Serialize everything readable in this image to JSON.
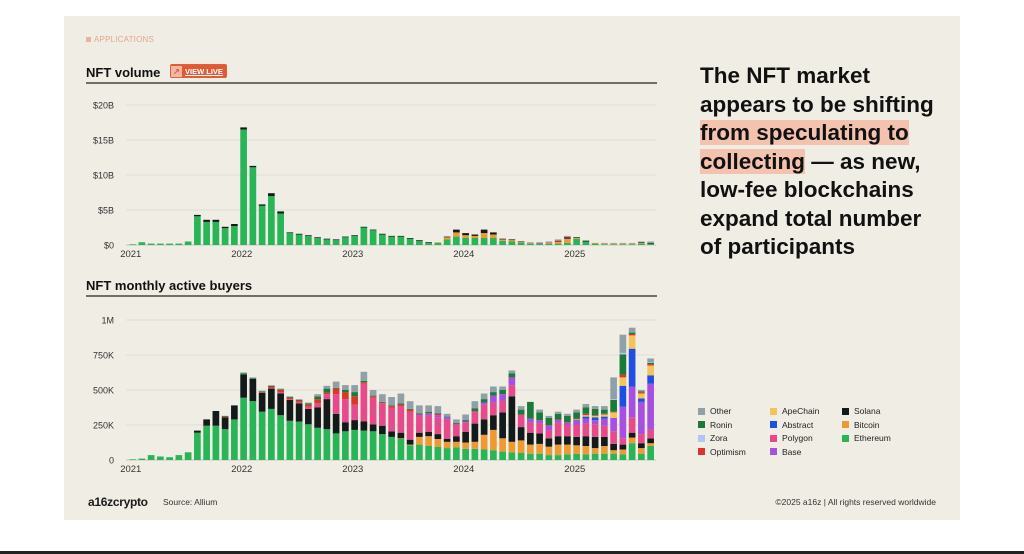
{
  "eyebrow": "APPLICATIONS",
  "volume_title": "NFT volume",
  "view_live_label": "VIEW LIVE",
  "buyers_title": "NFT monthly active buyers",
  "headline": {
    "before": "The NFT market appears to be shifting ",
    "highlight": "from speculating to collecting",
    "after": " — as new, low-fee blockchains expand total number of participants"
  },
  "footer": {
    "logo": "a16zcrypto",
    "source": "Source: Allium",
    "copyright": "©2025 a16z | All rights reserved worldwide"
  },
  "colors": {
    "Other": "#8fa0a8",
    "Ronin": "#1a7a3a",
    "Zora": "#aec8ef",
    "Optimism": "#d9362c",
    "ApeChain": "#f2c55a",
    "Abstract": "#1f4fe0",
    "Polygon": "#e64a8a",
    "Base": "#a550e0",
    "Solana": "#121a1a",
    "Bitcoin": "#ee9a34",
    "Ethereum": "#28b457"
  },
  "legend": [
    "Other",
    "ApeChain",
    "Solana",
    "Ronin",
    "Abstract",
    "Bitcoin",
    "Zora",
    "Polygon",
    "Ethereum",
    "Optimism",
    "Base"
  ],
  "chart_data": [
    {
      "type": "bar",
      "stacked": true,
      "title": "NFT volume",
      "xlabel": "",
      "ylabel": "",
      "x_ticks": [
        "2021",
        "2022",
        "2023",
        "2024",
        "2025"
      ],
      "y_ticks": [
        "$0",
        "$5B",
        "$10B",
        "$15B",
        "$20B"
      ],
      "ylim": [
        0,
        20
      ],
      "units": "USD billions",
      "grid": true,
      "categories": [
        "2021-01",
        "2021-02",
        "2021-03",
        "2021-04",
        "2021-05",
        "2021-06",
        "2021-07",
        "2021-08",
        "2021-09",
        "2021-10",
        "2021-11",
        "2021-12",
        "2022-01",
        "2022-02",
        "2022-03",
        "2022-04",
        "2022-05",
        "2022-06",
        "2022-07",
        "2022-08",
        "2022-09",
        "2022-10",
        "2022-11",
        "2022-12",
        "2023-01",
        "2023-02",
        "2023-03",
        "2023-04",
        "2023-05",
        "2023-06",
        "2023-07",
        "2023-08",
        "2023-09",
        "2023-10",
        "2023-11",
        "2023-12",
        "2024-01",
        "2024-02",
        "2024-03",
        "2024-04",
        "2024-05",
        "2024-06",
        "2024-07",
        "2024-08",
        "2024-09",
        "2024-10",
        "2024-11",
        "2024-12",
        "2025-01",
        "2025-02",
        "2025-03",
        "2025-04",
        "2025-05",
        "2025-06",
        "2025-07",
        "2025-08",
        "2025-09"
      ],
      "series": [
        {
          "name": "Ethereum",
          "values": [
            0.1,
            0.4,
            0.2,
            0.2,
            0.2,
            0.2,
            0.5,
            4.1,
            3.3,
            3.3,
            2.4,
            2.7,
            16.5,
            11.1,
            5.6,
            7.0,
            4.5,
            1.7,
            1.5,
            1.3,
            1.0,
            0.8,
            0.7,
            1.1,
            1.3,
            2.5,
            2.1,
            1.5,
            1.2,
            1.2,
            0.9,
            0.6,
            0.3,
            0.3,
            0.8,
            1.2,
            1.0,
            1.0,
            1.0,
            1.0,
            0.6,
            0.5,
            0.3,
            0.2,
            0.2,
            0.2,
            0.2,
            0.3,
            0.9,
            0.5,
            0.2,
            0.1,
            0.1,
            0.1,
            0.1,
            0.2,
            0.2
          ]
        },
        {
          "name": "Bitcoin",
          "values": [
            0,
            0,
            0,
            0,
            0,
            0,
            0,
            0,
            0,
            0,
            0,
            0,
            0,
            0,
            0,
            0,
            0,
            0,
            0,
            0,
            0,
            0,
            0,
            0,
            0,
            0,
            0,
            0,
            0,
            0,
            0,
            0,
            0,
            0.1,
            0.3,
            0.6,
            0.4,
            0.3,
            0.7,
            0.5,
            0.2,
            0.2,
            0.1,
            0.1,
            0,
            0.1,
            0.3,
            0.6,
            0.1,
            0,
            0.1,
            0.1,
            0.1,
            0.1,
            0.1,
            0.1,
            0
          ]
        },
        {
          "name": "Solana",
          "values": [
            0,
            0,
            0,
            0,
            0,
            0,
            0,
            0.2,
            0.3,
            0.3,
            0.2,
            0.3,
            0.3,
            0.2,
            0.2,
            0.4,
            0.3,
            0.1,
            0.1,
            0.1,
            0.1,
            0.1,
            0.1,
            0.1,
            0.1,
            0.1,
            0.1,
            0.1,
            0.1,
            0.1,
            0.1,
            0.1,
            0.1,
            0,
            0.1,
            0.4,
            0.3,
            0.2,
            0.5,
            0.3,
            0.1,
            0.1,
            0.1,
            0,
            0,
            0,
            0.1,
            0.2,
            0.1,
            0.1,
            0,
            0,
            0,
            0,
            0,
            0.1,
            0.1
          ]
        },
        {
          "name": "Polygon",
          "values": [
            0,
            0,
            0,
            0,
            0,
            0,
            0,
            0,
            0,
            0,
            0,
            0,
            0,
            0,
            0,
            0,
            0,
            0,
            0,
            0,
            0,
            0,
            0,
            0,
            0,
            0,
            0,
            0,
            0,
            0,
            0,
            0,
            0,
            0,
            0,
            0,
            0,
            0,
            0,
            0,
            0,
            0,
            0,
            0,
            0.1,
            0.1,
            0.1,
            0.1,
            0,
            0,
            0,
            0,
            0,
            0,
            0,
            0,
            0
          ]
        },
        {
          "name": "Other",
          "values": [
            0,
            0,
            0,
            0,
            0,
            0,
            0,
            0,
            0,
            0,
            0,
            0,
            0,
            0,
            0,
            0,
            0,
            0,
            0,
            0,
            0,
            0,
            0,
            0,
            0,
            0,
            0,
            0,
            0,
            0,
            0,
            0,
            0,
            0,
            0,
            0,
            0,
            0,
            0,
            0,
            0,
            0,
            0,
            0.1,
            0.1,
            0.1,
            0.1,
            0.1,
            0,
            0.1,
            0,
            0.1,
            0.1,
            0.1,
            0.1,
            0.1,
            0.2
          ]
        }
      ]
    },
    {
      "type": "bar",
      "stacked": true,
      "title": "NFT monthly active buyers",
      "xlabel": "",
      "ylabel": "",
      "x_ticks": [
        "2021",
        "2022",
        "2023",
        "2024",
        "2025"
      ],
      "y_ticks": [
        "0",
        "250K",
        "500K",
        "750K",
        "1M"
      ],
      "ylim": [
        0,
        1000
      ],
      "units": "thousands of buyers",
      "grid": true,
      "categories": [
        "2021-01",
        "2021-02",
        "2021-03",
        "2021-04",
        "2021-05",
        "2021-06",
        "2021-07",
        "2021-08",
        "2021-09",
        "2021-10",
        "2021-11",
        "2021-12",
        "2022-01",
        "2022-02",
        "2022-03",
        "2022-04",
        "2022-05",
        "2022-06",
        "2022-07",
        "2022-08",
        "2022-09",
        "2022-10",
        "2022-11",
        "2022-12",
        "2023-01",
        "2023-02",
        "2023-03",
        "2023-04",
        "2023-05",
        "2023-06",
        "2023-07",
        "2023-08",
        "2023-09",
        "2023-10",
        "2023-11",
        "2023-12",
        "2024-01",
        "2024-02",
        "2024-03",
        "2024-04",
        "2024-05",
        "2024-06",
        "2024-07",
        "2024-08",
        "2024-09",
        "2024-10",
        "2024-11",
        "2024-12",
        "2025-01",
        "2025-02",
        "2025-03",
        "2025-04",
        "2025-05",
        "2025-06",
        "2025-07",
        "2025-08",
        "2025-09"
      ],
      "series": [
        {
          "name": "Ethereum",
          "values": [
            5,
            10,
            35,
            25,
            20,
            35,
            55,
            195,
            245,
            245,
            220,
            290,
            445,
            420,
            345,
            365,
            320,
            280,
            275,
            255,
            230,
            220,
            190,
            205,
            215,
            210,
            205,
            185,
            165,
            150,
            105,
            110,
            100,
            95,
            85,
            90,
            80,
            80,
            75,
            70,
            60,
            55,
            50,
            45,
            45,
            35,
            35,
            40,
            45,
            40,
            45,
            45,
            45,
            40,
            120,
            45,
            100
          ]
        },
        {
          "name": "Bitcoin",
          "values": [
            0,
            0,
            0,
            0,
            0,
            0,
            0,
            0,
            0,
            0,
            0,
            0,
            0,
            0,
            0,
            0,
            0,
            0,
            0,
            0,
            0,
            0,
            0,
            0,
            0,
            0,
            0,
            0,
            0,
            5,
            5,
            55,
            70,
            55,
            45,
            40,
            45,
            50,
            105,
            145,
            95,
            75,
            90,
            65,
            70,
            60,
            75,
            70,
            60,
            60,
            40,
            55,
            25,
            35,
            40,
            40,
            20
          ]
        },
        {
          "name": "Solana",
          "values": [
            0,
            0,
            0,
            0,
            0,
            0,
            0,
            15,
            45,
            105,
            85,
            100,
            165,
            160,
            135,
            145,
            155,
            150,
            130,
            110,
            145,
            215,
            140,
            65,
            70,
            65,
            50,
            60,
            40,
            40,
            35,
            30,
            30,
            35,
            20,
            40,
            75,
            130,
            110,
            105,
            185,
            325,
            95,
            85,
            75,
            60,
            60,
            60,
            60,
            70,
            80,
            65,
            45,
            35,
            35,
            35,
            35
          ]
        },
        {
          "name": "Polygon",
          "values": [
            0,
            0,
            0,
            0,
            0,
            0,
            0,
            0,
            0,
            0,
            0,
            0,
            0,
            0,
            0,
            5,
            10,
            5,
            10,
            15,
            30,
            35,
            140,
            165,
            110,
            270,
            190,
            160,
            170,
            190,
            200,
            120,
            115,
            120,
            140,
            80,
            70,
            80,
            105,
            90,
            85,
            80,
            90,
            70,
            70,
            55,
            95,
            80,
            85,
            90,
            90,
            80,
            90,
            45,
            110,
            65,
            60
          ]
        },
        {
          "name": "Base",
          "values": [
            0,
            0,
            0,
            0,
            0,
            0,
            0,
            0,
            0,
            0,
            0,
            0,
            0,
            0,
            0,
            0,
            0,
            0,
            0,
            0,
            0,
            0,
            0,
            0,
            0,
            0,
            0,
            0,
            0,
            0,
            0,
            10,
            15,
            15,
            15,
            5,
            5,
            5,
            15,
            50,
            45,
            55,
            0,
            30,
            25,
            35,
            20,
            15,
            30,
            35,
            30,
            50,
            95,
            225,
            220,
            230,
            330
          ]
        },
        {
          "name": "Abstract",
          "values": [
            0,
            0,
            0,
            0,
            0,
            0,
            0,
            0,
            0,
            0,
            0,
            0,
            0,
            0,
            0,
            0,
            0,
            0,
            0,
            0,
            0,
            0,
            0,
            0,
            0,
            0,
            0,
            0,
            0,
            0,
            0,
            0,
            0,
            0,
            0,
            0,
            0,
            0,
            0,
            0,
            0,
            0,
            0,
            0,
            0,
            0,
            0,
            0,
            5,
            15,
            20,
            15,
            0,
            150,
            270,
            25,
            60
          ]
        },
        {
          "name": "ApeChain",
          "values": [
            0,
            0,
            0,
            0,
            0,
            0,
            0,
            0,
            0,
            0,
            0,
            0,
            0,
            0,
            0,
            0,
            0,
            0,
            0,
            0,
            0,
            0,
            0,
            0,
            0,
            0,
            0,
            0,
            0,
            0,
            0,
            0,
            0,
            0,
            0,
            0,
            0,
            0,
            0,
            0,
            0,
            0,
            0,
            0,
            0,
            0,
            0,
            0,
            5,
            10,
            10,
            15,
            40,
            60,
            95,
            35,
            70
          ]
        },
        {
          "name": "Optimism",
          "values": [
            0,
            0,
            0,
            0,
            0,
            0,
            0,
            0,
            0,
            0,
            5,
            0,
            0,
            0,
            5,
            10,
            15,
            10,
            10,
            15,
            30,
            10,
            40,
            50,
            60,
            10,
            10,
            5,
            10,
            10,
            15,
            5,
            5,
            10,
            0,
            5,
            0,
            5,
            0,
            0,
            0,
            0,
            0,
            0,
            0,
            5,
            5,
            5,
            5,
            10,
            5,
            5,
            5,
            20,
            10,
            10,
            10
          ]
        },
        {
          "name": "Ronin",
          "values": [
            0,
            0,
            0,
            0,
            0,
            0,
            0,
            0,
            0,
            0,
            5,
            0,
            10,
            5,
            5,
            5,
            5,
            5,
            5,
            10,
            20,
            30,
            5,
            15,
            30,
            10,
            5,
            5,
            5,
            10,
            5,
            5,
            10,
            5,
            5,
            5,
            10,
            20,
            25,
            25,
            30,
            30,
            35,
            120,
            55,
            50,
            40,
            45,
            45,
            45,
            45,
            30,
            85,
            145,
            10,
            5,
            10
          ]
        },
        {
          "name": "Zora",
          "values": [
            0,
            0,
            0,
            0,
            0,
            0,
            0,
            0,
            0,
            0,
            0,
            0,
            0,
            0,
            0,
            0,
            0,
            0,
            0,
            0,
            0,
            0,
            0,
            0,
            0,
            0,
            0,
            0,
            0,
            0,
            0,
            0,
            0,
            0,
            0,
            0,
            0,
            0,
            0,
            0,
            0,
            0,
            0,
            0,
            0,
            0,
            0,
            0,
            0,
            0,
            0,
            0,
            5,
            10,
            0,
            0,
            5
          ]
        },
        {
          "name": "Other",
          "values": [
            0,
            0,
            0,
            0,
            0,
            0,
            0,
            0,
            0,
            0,
            0,
            0,
            5,
            5,
            5,
            5,
            5,
            5,
            5,
            5,
            15,
            20,
            45,
            35,
            50,
            65,
            40,
            55,
            60,
            70,
            55,
            55,
            45,
            50,
            20,
            25,
            40,
            50,
            40,
            40,
            25,
            20,
            25,
            0,
            20,
            15,
            15,
            15,
            20,
            25,
            20,
            25,
            155,
            130,
            35,
            10,
            25
          ]
        }
      ]
    }
  ]
}
